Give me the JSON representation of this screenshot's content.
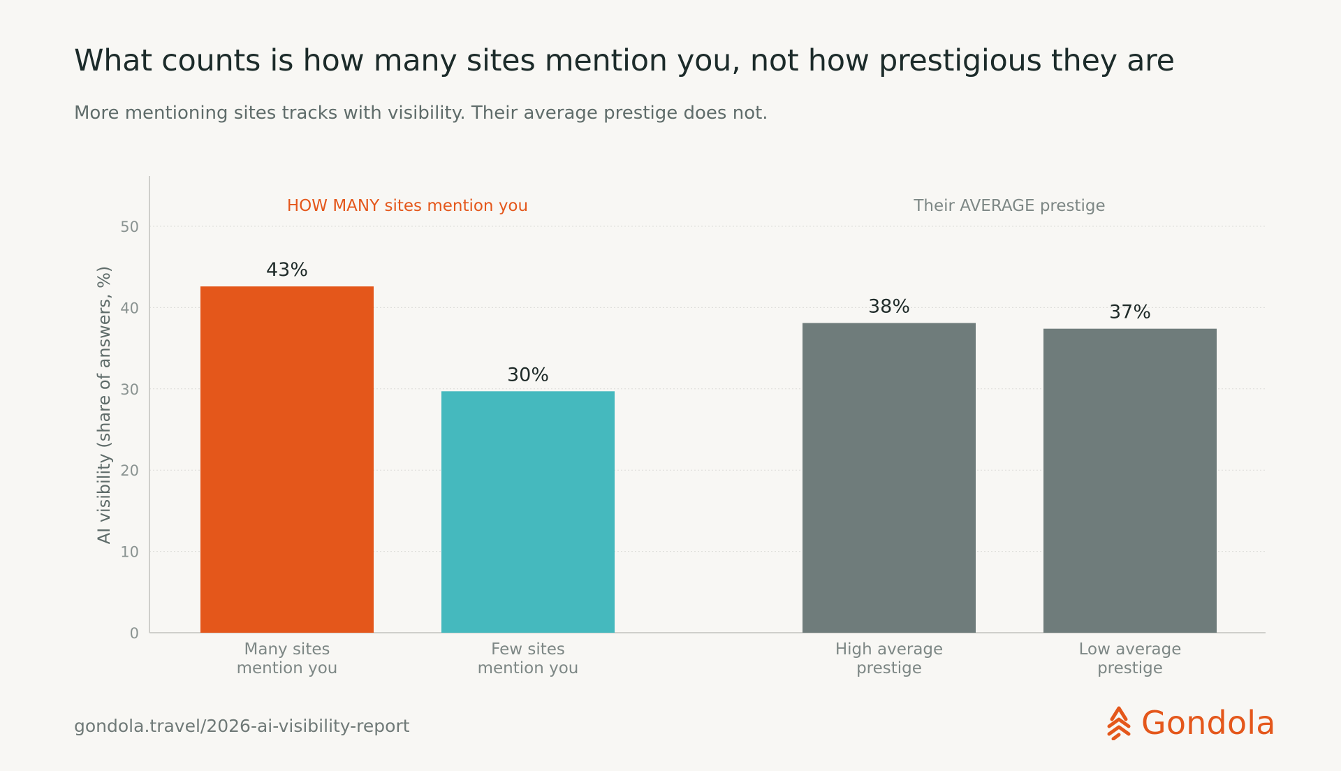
{
  "title": "What counts is how many sites mention you, not how prestigious they are",
  "subtitle": "More mentioning sites tracks with visibility. Their average prestige does not.",
  "footer": {
    "url": "gondola.travel/2026-ai-visibility-report",
    "brand": "Gondola",
    "brand_icon": "gondola-logo-icon"
  },
  "colors": {
    "accent": "#e4571b",
    "teal": "#45b9be",
    "grey": "#6f7c7b",
    "group_label_grey": "#7d8785"
  },
  "chart_data": {
    "type": "bar",
    "ylabel": "AI visibility (share of answers, %)",
    "ylim": [
      0,
      55
    ],
    "yticks": [
      0,
      10,
      20,
      30,
      40,
      50
    ],
    "grid": true,
    "groups": [
      {
        "label": "HOW MANY sites mention you",
        "color": "#e4571b"
      },
      {
        "label": "Their AVERAGE prestige",
        "color": "#7d8785"
      }
    ],
    "bars": [
      {
        "category": [
          "Many sites",
          "mention you"
        ],
        "value": 42.6,
        "data_label": "43%",
        "group": 0,
        "color": "#e4571b"
      },
      {
        "category": [
          "Few sites",
          "mention you"
        ],
        "value": 29.7,
        "data_label": "30%",
        "group": 0,
        "color": "#45b9be"
      },
      {
        "category": [
          "High average",
          "prestige"
        ],
        "value": 38.1,
        "data_label": "38%",
        "group": 1,
        "color": "#6f7c7b"
      },
      {
        "category": [
          "Low average",
          "prestige"
        ],
        "value": 37.4,
        "data_label": "37%",
        "group": 1,
        "color": "#6f7c7b"
      }
    ]
  }
}
